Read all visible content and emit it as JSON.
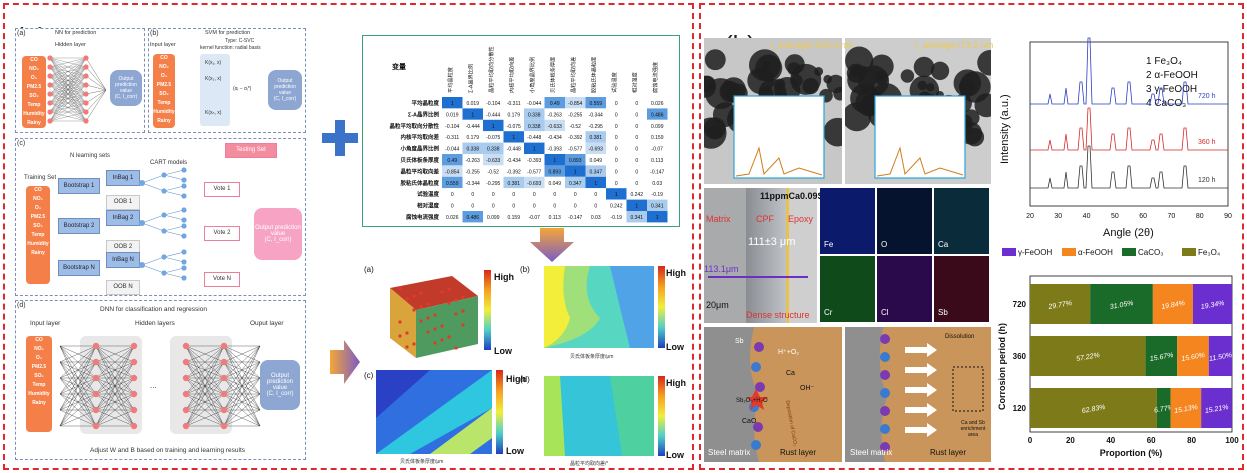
{
  "panel_a": {
    "label": "(a)",
    "nn": {
      "title": "NN for prediction",
      "hidden": "Hidden layer",
      "output": "Output prediction value",
      "output_sym": "(C, I_corr)",
      "sub": "(a)"
    },
    "svm": {
      "sub": "(b)",
      "title": "SVM for prediction",
      "type": "Type: C-SVC",
      "kernel": "kernel function: radial basis",
      "input": "Input layer",
      "k1": "K(x₁, x)",
      "k2": "K(x₂, x)",
      "kn": "K(xₙ, x)",
      "sum": "(αᵢ − αᵢ*)",
      "output": "Output prediction value",
      "output_sym": "(C, I_corr)"
    },
    "inputs": [
      "CO",
      "NO₂",
      "O₃",
      "PM2.5",
      "SO₂",
      "Temp",
      "Humidity",
      "Rainy"
    ],
    "rf": {
      "sub": "(c)",
      "n_sets": "N learning sets",
      "testing": "Testing Set",
      "cart": "CART models",
      "training": "Training Set",
      "bootstraps": [
        "Bootstrap 1",
        "Bootstrap 2",
        "Bootstrap N"
      ],
      "inbags": [
        "InBag 1",
        "InBag 2",
        "InBag N"
      ],
      "oobs": [
        "OOB 1",
        "OOB 2",
        "OOB N"
      ],
      "votes": [
        "Vote 1",
        "Vote 2",
        "Vote N"
      ],
      "output": "Output prediction value",
      "output_sym": "(C, I_corr)"
    },
    "dnn": {
      "sub": "(d)",
      "title": "DNN for classification and regression",
      "input": "Input layer",
      "hidden": "Hidden layers",
      "output_layer": "Ouput layer",
      "output": "Output prediction value",
      "output_sym": "(C, I_corr)",
      "adjust": "Adjust W and B based on training and learning results"
    },
    "corr": {
      "corner": "变量",
      "cols": [
        "平均晶粒度",
        "Σ-A晶界比例",
        "晶粒平均取向分散性",
        "内核平均取向差",
        "小角度晶界比例",
        "贝氏体板条厚度",
        "晶粒平均取向差",
        "胶粘氏体晶粒度",
        "试验温度",
        "相对湿度",
        "腐蚀电流强度"
      ],
      "rows": [
        {
          "name": "平均晶粒度",
          "v": [
            "1",
            "0.019",
            "-0.104",
            "-0.311",
            "-0.044",
            "0.49",
            "-0.854",
            "0.559",
            "0",
            "0",
            "0.026"
          ]
        },
        {
          "name": "Σ-A晶界比例",
          "v": [
            "0.019",
            "1",
            "-0.444",
            "0.179",
            "0.338",
            "-0.263",
            "-0.255",
            "-0.344",
            "0",
            "0",
            "0.486"
          ]
        },
        {
          "name": "晶粒平均取向分散性",
          "v": [
            "-0.104",
            "-0.444",
            "1",
            "-0.075",
            "0.338",
            "-0.633",
            "-0.52",
            "-0.295",
            "0",
            "0",
            "0.099"
          ]
        },
        {
          "name": "内核平均取向差",
          "v": [
            "-0.311",
            "0.179",
            "-0.075",
            "1",
            "-0.448",
            "-0.434",
            "-0.392",
            "0.381",
            "0",
            "0",
            "0.159"
          ]
        },
        {
          "name": "小角度晶界比例",
          "v": [
            "-0.044",
            "0.338",
            "0.338",
            "-0.448",
            "1",
            "-0.393",
            "-0.577",
            "-0.693",
            "0",
            "0",
            "-0.07"
          ]
        },
        {
          "name": "贝氏体板条厚度",
          "v": [
            "0.49",
            "-0.263",
            "-0.633",
            "-0.434",
            "-0.393",
            "1",
            "0.893",
            "0.049",
            "0",
            "0",
            "0.113"
          ]
        },
        {
          "name": "晶粒平均取向差",
          "v": [
            "-0.854",
            "-0.255",
            "-0.52",
            "-0.392",
            "-0.577",
            "0.893",
            "1",
            "0.347",
            "0",
            "0",
            "-0.147"
          ]
        },
        {
          "name": "胶粘氏体晶粒度",
          "v": [
            "0.559",
            "-0.344",
            "-0.295",
            "0.381",
            "-0.693",
            "0.049",
            "0.347",
            "1",
            "0",
            "0",
            "0.03"
          ]
        },
        {
          "name": "试验温度",
          "v": [
            "0",
            "0",
            "0",
            "0",
            "0",
            "0",
            "0",
            "0",
            "1",
            "0.242",
            "-0.19"
          ]
        },
        {
          "name": "相对湿度",
          "v": [
            "0",
            "0",
            "0",
            "0",
            "0",
            "0",
            "0",
            "0",
            "0.242",
            "1",
            "0.341"
          ]
        },
        {
          "name": "腐蚀电流强度",
          "v": [
            "0.026",
            "0.486",
            "0.099",
            "0.159",
            "-0.07",
            "0.113",
            "-0.147",
            "0.03",
            "-0.19",
            "0.341",
            "1"
          ]
        }
      ]
    },
    "maps": {
      "a": "(a)",
      "b": "(b)",
      "c": "(c)",
      "d": "(d)",
      "high": "High",
      "low": "Low",
      "xb": "贝氏体板条厚度/μm",
      "xc": "贝氏体板条厚度/μm",
      "xd": "晶粒平均取向差/°"
    }
  },
  "panel_b": {
    "label": "(b)",
    "r1": "r_average=203.4 nm",
    "r2": "r_average=72.2 nm",
    "cross": {
      "title": "11ppmCa0.09Sb",
      "matrix": "Matrix",
      "cpf": "CPF",
      "epoxy": "Epoxy",
      "thick": "111±3 μm",
      "measure": "113.1μm",
      "dense": "Dense structure",
      "scale": "20μm"
    },
    "eds": [
      "Fe",
      "O",
      "Ca",
      "Cr",
      "Cl",
      "Sb"
    ],
    "mech1": {
      "steel": "Steel matrix",
      "rust": "Rust layer",
      "sb": "Sb",
      "h": "H⁺+O₂",
      "ca": "Ca",
      "oh": "OH⁻",
      "cao": "CaO",
      "react": "Sb₂O₃+H₂O",
      "dep": "Deposition of CaCO₃"
    },
    "mech2": {
      "steel": "Steel matrix",
      "rust": "Rust layer",
      "diss": "Dissolution",
      "area": "Ca and Sb enrichment area"
    },
    "xrd": {
      "ylabel": "Intensity (a.u.)",
      "xlabel": "Angle (2θ)",
      "legend": [
        "1 Fe₃O₄",
        "2 α-FeOOH",
        "3 γ-FeOOH",
        "4 CaCO₃"
      ],
      "traces": [
        "720 h",
        "360 h",
        "120 h"
      ],
      "xticks": [
        "20",
        "30",
        "40",
        "50",
        "60",
        "70",
        "80",
        "90"
      ],
      "colors": [
        "#2a3fc4",
        "#d42a2a",
        "#333333"
      ]
    },
    "bar": {
      "legend": [
        "γ-FeOOH",
        "α-FeOOH",
        "CaCO₃",
        "Fe₃O₄"
      ],
      "colors": [
        "#6b2fd0",
        "#f5861f",
        "#1a6b2a",
        "#7d7a1a"
      ]
    }
  },
  "chart_data": {
    "type": "bar",
    "orientation": "horizontal-stacked",
    "categories": [
      "720",
      "360",
      "120"
    ],
    "series": [
      {
        "name": "Fe₃O₄",
        "values": [
          29.77,
          57.22,
          62.83
        ]
      },
      {
        "name": "CaCO₃",
        "values": [
          31.05,
          15.67,
          6.77
        ]
      },
      {
        "name": "α-FeOOH",
        "values": [
          19.84,
          15.6,
          15.13
        ]
      },
      {
        "name": "γ-FeOOH",
        "values": [
          19.34,
          11.5,
          15.21
        ]
      }
    ],
    "labels": {
      "Fe₃O₄": [
        "29.77%",
        "57.22%",
        "62.83%"
      ],
      "CaCO₃": [
        "31.05%",
        "15.67%",
        "6.77%"
      ],
      "α-FeOOH": [
        "19.84%",
        "15.60%",
        "15.13%"
      ],
      "γ-FeOOH": [
        "19.34%",
        "11.50%",
        "15.21%"
      ]
    },
    "xlabel": "Proportion (%)",
    "ylabel": "Corrosion period (h)",
    "xticks": [
      "0",
      "20",
      "40",
      "60",
      "80",
      "100"
    ],
    "xlim": [
      0,
      100
    ]
  }
}
